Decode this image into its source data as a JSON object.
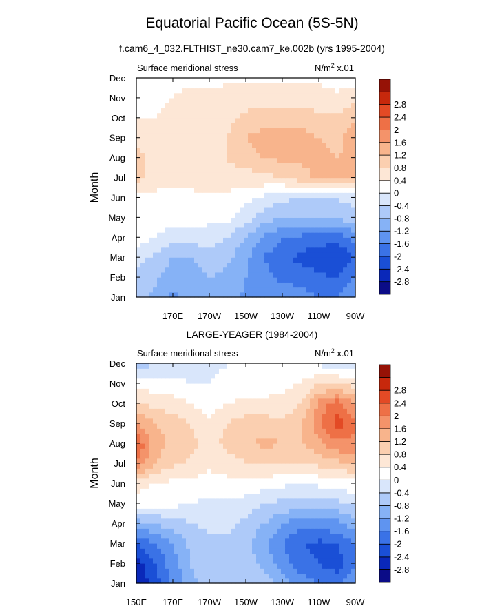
{
  "figure": {
    "title": "Equatorial Pacific Ocean (5S-5N)",
    "subtitle": "f.cam6_4_032.FLTHIST_ne30.cam7_ke.002b (yrs 1995-2004)"
  },
  "colors": {
    "scale": [
      "#0b0c87",
      "#0a28b9",
      "#1a4fd6",
      "#3a72e6",
      "#5f94f0",
      "#86b2f6",
      "#aecaf9",
      "#d9e6fb",
      "#ffffff",
      "#fde7d6",
      "#fbcfb0",
      "#f8b48c",
      "#f4936a",
      "#ee7046",
      "#e34a25",
      "#c7280c",
      "#961206"
    ]
  },
  "chart_data": [
    {
      "type": "heatmap",
      "title": "f.cam6_4_032.FLTHIST_ne30.cam7_ke.002b (yrs 1995-2004)",
      "left_label": "Surface meridional stress",
      "right_label": "N/m",
      "right_label_sup": "2",
      "right_label_tail": " x.01",
      "ylabel": "Month",
      "xlabel": "",
      "x_ticks": [
        "170E",
        "170W",
        "150W",
        "130W",
        "110W",
        "90W"
      ],
      "y_ticks": [
        "Jan",
        "Feb",
        "Mar",
        "Apr",
        "May",
        "Jun",
        "Jul",
        "Aug",
        "Sep",
        "Oct",
        "Nov",
        "Dec"
      ],
      "x": [
        150,
        160,
        170,
        180,
        190,
        200,
        210,
        220,
        230,
        240,
        250,
        260,
        270
      ],
      "x_units": "degrees east (150E to 90W)",
      "colorbar_levels": [
        -2.8,
        -2.4,
        -2,
        -1.6,
        -1.2,
        -0.8,
        -0.4,
        0,
        0.4,
        0.8,
        1.2,
        1.6,
        2,
        2.4,
        2.8
      ],
      "z": [
        [
          -0.6,
          -0.9,
          -1.3,
          -1.1,
          -0.8,
          -1.0,
          -1.3,
          -1.3,
          -1.2,
          -1.4,
          -1.6,
          -1.6,
          -1.2
        ],
        [
          -0.5,
          -0.7,
          -1.0,
          -1.0,
          -0.8,
          -0.9,
          -1.2,
          -1.5,
          -1.7,
          -1.8,
          -1.9,
          -2.0,
          -1.6
        ],
        [
          -0.2,
          -0.5,
          -0.8,
          -0.8,
          -0.6,
          -0.7,
          -1.1,
          -1.6,
          -1.9,
          -2.1,
          -2.3,
          -2.4,
          -2.0
        ],
        [
          0.2,
          0.0,
          -0.3,
          -0.2,
          -0.2,
          -0.4,
          -0.8,
          -1.3,
          -1.6,
          -1.7,
          -1.8,
          -1.8,
          -1.5
        ],
        [
          0.3,
          0.3,
          0.2,
          0.2,
          0.1,
          0.1,
          -0.2,
          -0.6,
          -0.8,
          -0.8,
          -0.8,
          -0.7,
          -0.6
        ],
        [
          0.3,
          0.3,
          0.2,
          0.2,
          0.3,
          0.3,
          0.1,
          -0.1,
          -0.3,
          -0.4,
          -0.4,
          -0.4,
          -0.2
        ],
        [
          1.0,
          0.6,
          0.6,
          0.7,
          0.7,
          0.7,
          0.6,
          0.7,
          0.8,
          1.0,
          1.3,
          1.4,
          1.3
        ],
        [
          1.0,
          0.6,
          0.7,
          0.8,
          0.7,
          0.8,
          1.0,
          1.2,
          1.3,
          1.3,
          1.3,
          1.2,
          1.3
        ],
        [
          0.7,
          0.5,
          0.6,
          0.7,
          0.6,
          0.8,
          1.2,
          1.4,
          1.5,
          1.4,
          1.2,
          1.1,
          1.4
        ],
        [
          0.4,
          0.4,
          0.5,
          0.6,
          0.6,
          0.7,
          0.9,
          1.0,
          1.0,
          1.0,
          0.9,
          0.9,
          1.2
        ],
        [
          0.2,
          0.3,
          0.4,
          0.5,
          0.5,
          0.6,
          0.6,
          0.6,
          0.6,
          0.6,
          0.6,
          0.5,
          0.6
        ],
        [
          0.0,
          0.2,
          0.3,
          0.3,
          0.3,
          0.3,
          0.3,
          0.3,
          0.3,
          0.3,
          0.3,
          0.2,
          0.2
        ]
      ]
    },
    {
      "type": "heatmap",
      "title": "LARGE-YEAGER (1984-2004)",
      "left_label": "Surface meridional stress",
      "right_label": "N/m",
      "right_label_sup": "2",
      "right_label_tail": " x.01",
      "ylabel": "Month",
      "xlabel": "",
      "x_ticks": [
        "150E",
        "170E",
        "170W",
        "150W",
        "130W",
        "110W",
        "90W"
      ],
      "y_ticks": [
        "Jan",
        "Feb",
        "Mar",
        "Apr",
        "May",
        "Jun",
        "Jul",
        "Aug",
        "Sep",
        "Oct",
        "Nov",
        "Dec"
      ],
      "x": [
        150,
        160,
        170,
        180,
        190,
        200,
        210,
        220,
        230,
        240,
        250,
        260,
        270
      ],
      "x_units": "degrees east (150E to 90W)",
      "colorbar_levels": [
        -2.8,
        -2.4,
        -2,
        -1.6,
        -1.2,
        -0.8,
        -0.4,
        0,
        0.4,
        0.8,
        1.2,
        1.6,
        2,
        2.4,
        2.8
      ],
      "z": [
        [
          -2.8,
          -2.2,
          -1.5,
          -0.9,
          -0.6,
          -0.5,
          -0.5,
          -0.6,
          -1.0,
          -1.4,
          -1.6,
          -1.7,
          -1.2
        ],
        [
          -2.6,
          -2.0,
          -1.4,
          -0.8,
          -0.5,
          -0.5,
          -0.6,
          -0.9,
          -1.4,
          -1.8,
          -2.0,
          -2.2,
          -1.6
        ],
        [
          -2.0,
          -1.6,
          -1.2,
          -0.7,
          -0.5,
          -0.5,
          -0.7,
          -1.1,
          -1.6,
          -2.0,
          -2.1,
          -2.0,
          -1.6
        ],
        [
          -1.0,
          -0.8,
          -0.6,
          -0.4,
          -0.3,
          -0.3,
          -0.5,
          -0.8,
          -1.2,
          -1.4,
          -1.4,
          -1.3,
          -1.0
        ],
        [
          0.3,
          0.2,
          0.1,
          0.0,
          -0.1,
          -0.1,
          -0.2,
          -0.4,
          -0.5,
          -0.6,
          -0.6,
          -0.5,
          -0.3
        ],
        [
          0.5,
          0.4,
          0.3,
          0.3,
          0.2,
          0.3,
          0.3,
          0.2,
          0.1,
          0.0,
          0.1,
          0.1,
          0.3
        ],
        [
          2.0,
          1.2,
          0.9,
          0.7,
          0.5,
          0.6,
          0.8,
          0.8,
          0.8,
          0.8,
          0.9,
          1.1,
          1.2
        ],
        [
          2.4,
          1.4,
          1.1,
          0.9,
          0.7,
          0.9,
          1.1,
          1.3,
          1.2,
          1.2,
          1.5,
          1.9,
          1.9
        ],
        [
          1.7,
          1.2,
          1.0,
          0.8,
          0.5,
          0.8,
          1.0,
          1.0,
          0.9,
          1.1,
          1.9,
          2.6,
          2.0
        ],
        [
          0.8,
          0.7,
          0.6,
          0.4,
          0.2,
          0.4,
          0.5,
          0.5,
          0.5,
          0.8,
          1.7,
          2.2,
          1.6
        ],
        [
          0.2,
          0.2,
          0.1,
          0.0,
          0.0,
          0.1,
          0.2,
          0.2,
          0.3,
          0.4,
          0.8,
          0.8,
          0.6
        ],
        [
          -0.6,
          -0.4,
          -0.3,
          -0.2,
          -0.1,
          0.0,
          0.1,
          0.2,
          0.2,
          0.1,
          -0.1,
          -0.2,
          -0.3
        ]
      ]
    }
  ]
}
